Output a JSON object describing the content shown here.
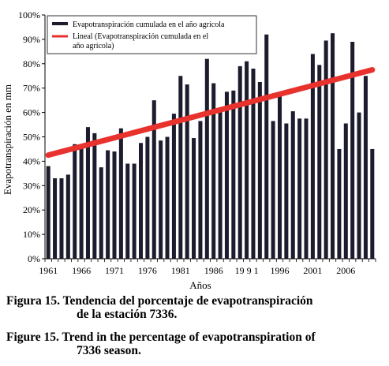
{
  "chart_data": {
    "type": "bar",
    "xlabel": "Años",
    "ylabel": "Evapotranspiración en mm",
    "ylim": [
      0,
      100
    ],
    "yticks": [
      "0%",
      "10%",
      "20%",
      "30%",
      "40%",
      "50%",
      "60%",
      "70%",
      "80%",
      "90%",
      "100%"
    ],
    "xtick_labels": [
      "1961",
      "1966",
      "1971",
      "1976",
      "1981",
      "1986",
      "19 9 1",
      "1996",
      "2001",
      "2006"
    ],
    "categories": [
      1961,
      1962,
      1963,
      1964,
      1965,
      1966,
      1967,
      1968,
      1969,
      1970,
      1971,
      1972,
      1973,
      1974,
      1975,
      1976,
      1977,
      1978,
      1979,
      1980,
      1981,
      1982,
      1983,
      1984,
      1985,
      1986,
      1987,
      1988,
      1989,
      1990,
      1991,
      1992,
      1993,
      1994,
      1995,
      1996,
      1997,
      1998,
      1999,
      2000,
      2001,
      2002,
      2003,
      2004,
      2005,
      2006,
      2007,
      2008,
      2009,
      2010
    ],
    "series": [
      {
        "name": "Evapotranspiración cumulada en el año agrícola",
        "color": "#1c1c2e",
        "values": [
          38,
          33,
          33,
          34.5,
          47,
          46,
          54,
          51.5,
          37.5,
          44.5,
          44,
          53.5,
          39,
          39,
          47.5,
          50,
          65,
          48.5,
          50,
          59.5,
          75,
          71.5,
          49.5,
          56.5,
          82,
          72,
          61.5,
          68.5,
          69,
          79,
          81,
          78,
          72.5,
          92,
          56.5,
          67,
          55.5,
          60.5,
          57.5,
          57.5,
          84,
          79.5,
          89.5,
          92.5,
          45,
          55.5,
          89,
          60,
          75,
          45
        ]
      }
    ],
    "trendline": {
      "name": "Lineal (Evapotranspiración cumulada en el año agrícola)",
      "color": "#e8322e",
      "start": 42.5,
      "end": 77.5
    },
    "legend_position": "top-left",
    "grid": false
  },
  "captions": {
    "es_line1": "Figura 15. Tendencia del porcentaje de evapotranspiración",
    "es_line2": "de la estación 7336.",
    "en_line1": "Figure 15. Trend in the percentage of evapotranspiration of",
    "en_line2": "7336 season."
  }
}
